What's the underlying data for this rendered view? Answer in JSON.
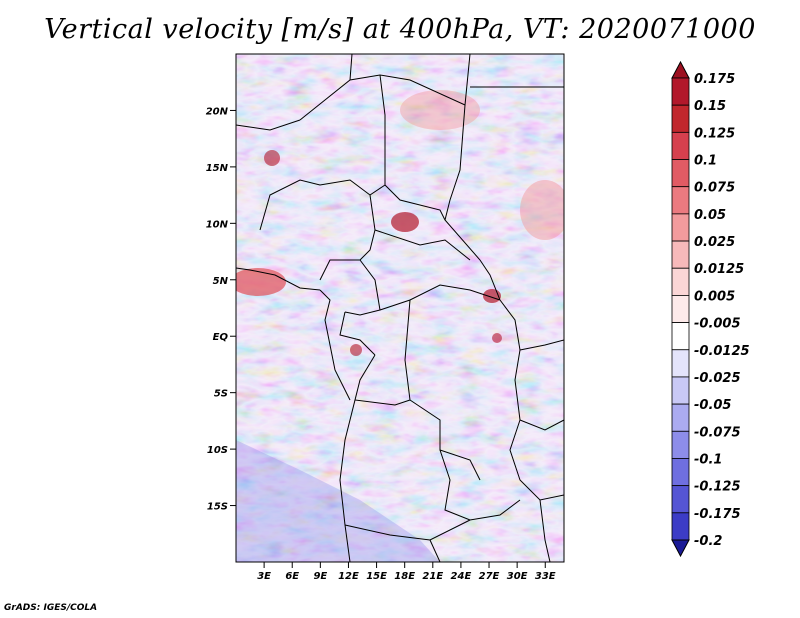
{
  "title": "Vertical velocity [m/s] at 400hPa, VT: 2020071000",
  "credit": "GrADS: IGES/COLA",
  "map": {
    "lon_range": [
      0,
      35
    ],
    "lat_range": [
      -20,
      25
    ],
    "lat_ticks": [
      {
        "lat": 20,
        "label": "20N"
      },
      {
        "lat": 15,
        "label": "15N"
      },
      {
        "lat": 10,
        "label": "10N"
      },
      {
        "lat": 5,
        "label": "5N"
      },
      {
        "lat": 0,
        "label": "EQ"
      },
      {
        "lat": -5,
        "label": "5S"
      },
      {
        "lat": -10,
        "label": "10S"
      },
      {
        "lat": -15,
        "label": "15S"
      }
    ],
    "lon_ticks": [
      {
        "lon": 3,
        "label": "3E"
      },
      {
        "lon": 6,
        "label": "6E"
      },
      {
        "lon": 9,
        "label": "9E"
      },
      {
        "lon": 12,
        "label": "12E"
      },
      {
        "lon": 15,
        "label": "15E"
      },
      {
        "lon": 18,
        "label": "18E"
      },
      {
        "lon": 21,
        "label": "21E"
      },
      {
        "lon": 24,
        "label": "24E"
      },
      {
        "lon": 27,
        "label": "27E"
      },
      {
        "lon": 30,
        "label": "30E"
      },
      {
        "lon": 33,
        "label": "33E"
      }
    ]
  },
  "colorbar": {
    "levels": [
      {
        "label": "0.175",
        "color": "#b2182b"
      },
      {
        "label": "0.15",
        "color": "#c1272d"
      },
      {
        "label": "0.125",
        "color": "#d6404e"
      },
      {
        "label": "0.1",
        "color": "#e15b64"
      },
      {
        "label": "0.075",
        "color": "#eb7a80"
      },
      {
        "label": "0.05",
        "color": "#f29b9d"
      },
      {
        "label": "0.025",
        "color": "#f7b9ba"
      },
      {
        "label": "0.0125",
        "color": "#fbd6d6"
      },
      {
        "label": "0.005",
        "color": "#fdeaea"
      },
      {
        "label": "-0.005",
        "color": "#ffffff"
      },
      {
        "label": "-0.0125",
        "color": "#e4e4fb"
      },
      {
        "label": "-0.025",
        "color": "#c9c9f6"
      },
      {
        "label": "-0.05",
        "color": "#ababf0"
      },
      {
        "label": "-0.075",
        "color": "#8d8de9"
      },
      {
        "label": "-0.1",
        "color": "#6f6fe0"
      },
      {
        "label": "-0.125",
        "color": "#5555d4"
      },
      {
        "label": "-0.175",
        "color": "#3c3cc6"
      },
      {
        "label": "-0.2",
        "color": "#2525b0"
      }
    ],
    "top_color": "#9c1020",
    "bottom_color": "#1a1a96"
  }
}
